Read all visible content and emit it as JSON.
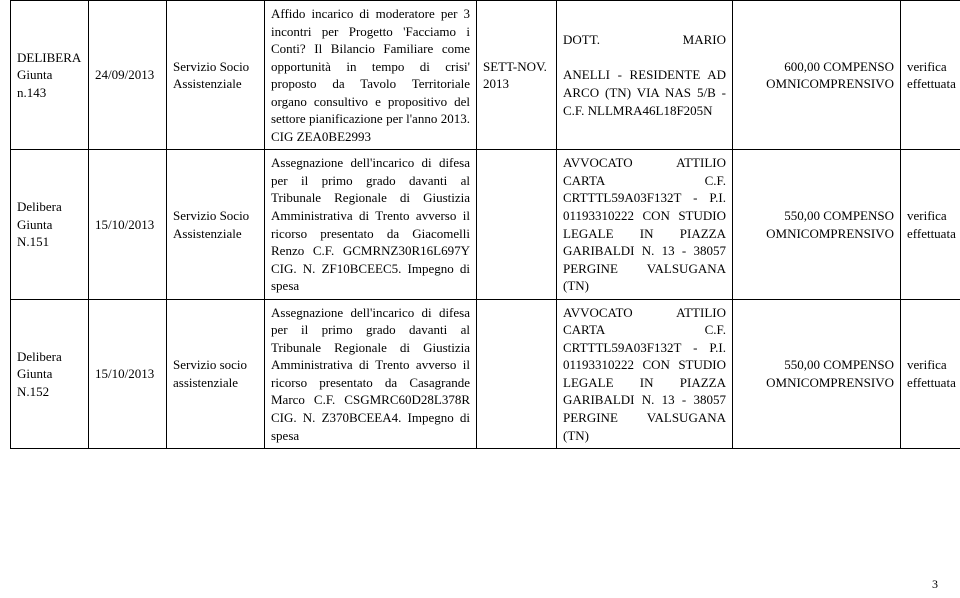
{
  "rows": [
    {
      "c0": "DELIBERA Giunta n.143",
      "c1": "24/09/2013",
      "c2": "Servizio Socio Assistenziale",
      "c3": "Affido incarico di moderatore per 3 incontri per Progetto 'Facciamo i Conti? Il Bilancio Familiare come opportunità in tempo di crisi' proposto da Tavolo Territoriale organo consultivo e propositivo del settore pianificazione per l'anno 2013. CIG ZEA0BE2993",
      "c4": "SETT-NOV. 2013",
      "c5_a": "DOTT.",
      "c5_b": "MARIO",
      "c5_rest": "ANELLI - RESIDENTE AD ARCO (TN) VIA NAS 5/B - C.F. NLLMRA46L18F205N",
      "c6": "600,00 COMPENSO OMNICOMPRENSIVO",
      "c7": "verifica effettuata"
    },
    {
      "c0": "Delibera Giunta N.151",
      "c1": "15/10/2013",
      "c2": "Servizio Socio Assistenziale",
      "c3": "Assegnazione dell'incarico di difesa per il primo grado davanti al Tribunale Regionale di Giustizia Amministrativa di Trento avverso il ricorso presentato da Giacomelli Renzo C.F. GCMRNZ30R16L697Y CIG. N. ZF10BCEEC5. Impegno di spesa",
      "c4": "",
      "c5": "AVVOCATO ATTILIO CARTA C.F. CRTTTL59A03F132T - P.I. 01193310222 CON STUDIO LEGALE IN PIAZZA GARIBALDI N. 13 - 38057 PERGINE VALSUGANA (TN)",
      "c6": "550,00 COMPENSO OMNICOMPRENSIVO",
      "c7": "verifica effettuata"
    },
    {
      "c0": "Delibera Giunta N.152",
      "c1": "15/10/2013",
      "c2": "Servizio socio assistenziale",
      "c3": "Assegnazione dell'incarico di difesa per il primo grado davanti al Tribunale Regionale di Giustizia Amministrativa di Trento avverso il ricorso presentato da Casagrande Marco C.F. CSGMRC60D28L378R CIG. N. Z370BCEEA4. Impegno di spesa",
      "c4": "",
      "c5": "AVVOCATO ATTILIO CARTA C.F. CRTTTL59A03F132T - P.I. 01193310222 CON STUDIO LEGALE IN PIAZZA GARIBALDI N. 13 - 38057 PERGINE VALSUGANA (TN)",
      "c6": "550,00 COMPENSO OMNICOMPRENSIVO",
      "c7": "verifica effettuata"
    }
  ],
  "page_number": "3"
}
